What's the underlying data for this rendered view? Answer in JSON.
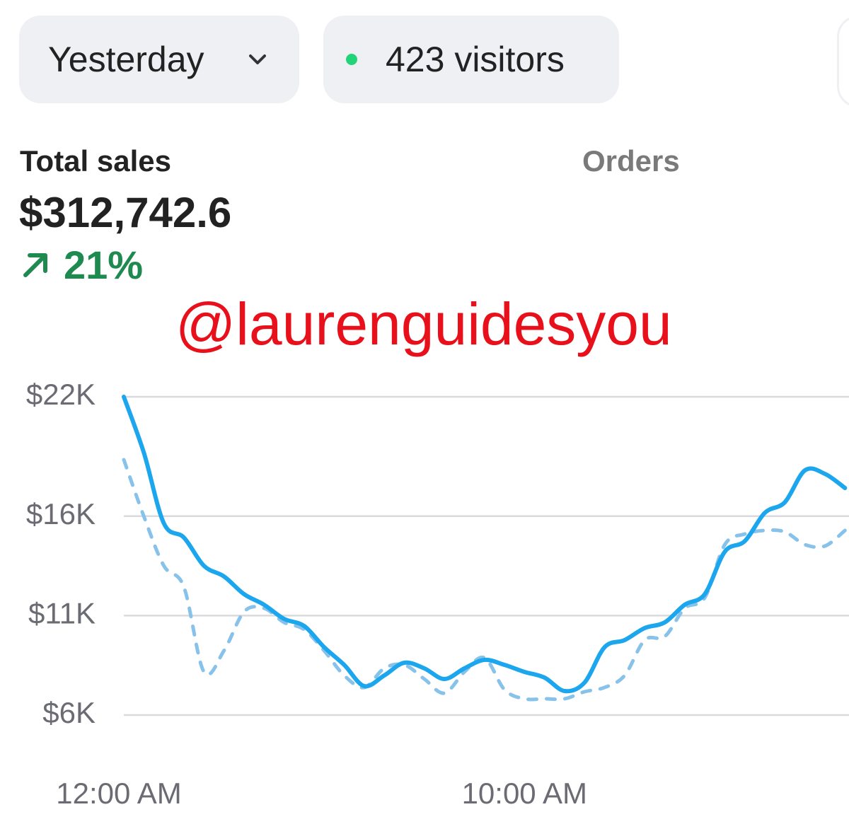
{
  "filters": {
    "period": "Yesterday",
    "visitors": "423 visitors"
  },
  "summary": {
    "label": "Total sales",
    "value": "$312,742.6",
    "change": "21%",
    "secondary_tab": "Orders"
  },
  "watermark": "@laurenguidesyou",
  "chart_data": {
    "type": "line",
    "x": [
      0,
      0.5,
      1,
      1.5,
      2,
      2.5,
      3,
      3.5,
      4,
      4.5,
      5,
      5.5,
      6,
      6.5,
      7,
      7.5,
      8,
      8.5,
      9,
      9.5,
      10,
      10.5,
      11,
      11.5,
      12,
      12.5,
      13,
      13.5,
      14,
      14.5,
      15,
      15.5,
      16,
      16.5,
      17,
      17.5,
      18
    ],
    "xlim": [
      0,
      18.1
    ],
    "xticks": [
      {
        "value": 0,
        "label": "12:00 AM"
      },
      {
        "value": 10,
        "label": "10:00 AM"
      }
    ],
    "ylim": [
      6000,
      22000
    ],
    "yticks": [
      {
        "value": 6000,
        "label": "$6K"
      },
      {
        "value": 11000,
        "label": "$11K"
      },
      {
        "value": 16000,
        "label": "$16K"
      },
      {
        "value": 22000,
        "label": "$22K"
      }
    ],
    "grid": true,
    "series": [
      {
        "color": "#1ca6ee",
        "style": "solid",
        "values": [
          22000,
          19191,
          15636,
          14924,
          13502,
          12969,
          12080,
          11547,
          10836,
          10480,
          9413,
          8524,
          7458,
          7991,
          8631,
          8347,
          7813,
          8347,
          8773,
          8524,
          8169,
          7884,
          7209,
          7636,
          9413,
          9769,
          10373,
          10658,
          11547,
          12080,
          14213,
          14747,
          16169,
          16702,
          18302,
          18124,
          17413
        ]
      },
      {
        "color": "#86c2ea",
        "style": "dashed",
        "values": [
          18836,
          15991,
          13502,
          12436,
          8169,
          9236,
          11191,
          11369,
          10658,
          10302,
          9236,
          7991,
          7387,
          8347,
          8524,
          7813,
          7102,
          8169,
          8880,
          7280,
          6818,
          6818,
          6818,
          7173,
          7387,
          7991,
          9769,
          9947,
          11369,
          11902,
          14569,
          15102,
          15280,
          15209,
          14569,
          14498,
          15280
        ]
      }
    ]
  }
}
